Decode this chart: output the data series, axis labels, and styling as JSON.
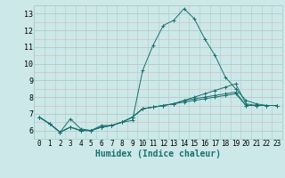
{
  "title": "",
  "xlabel": "Humidex (Indice chaleur)",
  "background_color": "#cce8e8",
  "grid_color_major": "#b8d8d8",
  "grid_color_minor": "#f0c8c8",
  "line_color": "#1a7070",
  "xlim": [
    -0.5,
    23.5
  ],
  "ylim": [
    5.5,
    13.5
  ],
  "yticks": [
    6,
    7,
    8,
    9,
    10,
    11,
    12,
    13
  ],
  "xticks": [
    0,
    1,
    2,
    3,
    4,
    5,
    6,
    7,
    8,
    9,
    10,
    11,
    12,
    13,
    14,
    15,
    16,
    17,
    18,
    19,
    20,
    21,
    22,
    23
  ],
  "lines": [
    {
      "x": [
        0,
        1,
        2,
        3,
        4,
        5,
        6,
        7,
        8,
        9,
        10,
        11,
        12,
        13,
        14,
        15,
        16,
        17,
        18,
        19,
        20,
        21,
        22,
        23
      ],
      "y": [
        6.8,
        6.4,
        5.9,
        6.7,
        6.1,
        6.0,
        6.3,
        6.3,
        6.5,
        6.6,
        9.6,
        11.1,
        12.3,
        12.6,
        13.3,
        12.7,
        11.5,
        10.5,
        9.2,
        8.5,
        7.8,
        7.6,
        7.5,
        7.5
      ]
    },
    {
      "x": [
        0,
        1,
        2,
        3,
        4,
        5,
        6,
        7,
        8,
        9,
        10,
        11,
        12,
        13,
        14,
        15,
        16,
        17,
        18,
        19,
        20,
        21,
        22,
        23
      ],
      "y": [
        6.8,
        6.4,
        5.9,
        6.2,
        6.0,
        6.0,
        6.2,
        6.3,
        6.5,
        6.8,
        7.3,
        7.4,
        7.5,
        7.6,
        7.8,
        8.0,
        8.2,
        8.4,
        8.6,
        8.8,
        7.6,
        7.5,
        7.5,
        7.5
      ]
    },
    {
      "x": [
        0,
        1,
        2,
        3,
        4,
        5,
        6,
        7,
        8,
        9,
        10,
        11,
        12,
        13,
        14,
        15,
        16,
        17,
        18,
        19,
        20,
        21,
        22,
        23
      ],
      "y": [
        6.8,
        6.4,
        5.9,
        6.2,
        6.0,
        6.0,
        6.2,
        6.3,
        6.5,
        6.8,
        7.3,
        7.4,
        7.5,
        7.6,
        7.8,
        7.9,
        8.0,
        8.1,
        8.2,
        8.3,
        7.5,
        7.5,
        7.5,
        7.5
      ]
    },
    {
      "x": [
        0,
        1,
        2,
        3,
        4,
        5,
        6,
        7,
        8,
        9,
        10,
        11,
        12,
        13,
        14,
        15,
        16,
        17,
        18,
        19,
        20,
        21,
        22,
        23
      ],
      "y": [
        6.8,
        6.4,
        5.9,
        6.2,
        6.0,
        6.0,
        6.2,
        6.3,
        6.5,
        6.8,
        7.3,
        7.4,
        7.5,
        7.6,
        7.7,
        7.8,
        7.9,
        8.0,
        8.1,
        8.2,
        7.5,
        7.5,
        7.5,
        7.5
      ]
    }
  ]
}
